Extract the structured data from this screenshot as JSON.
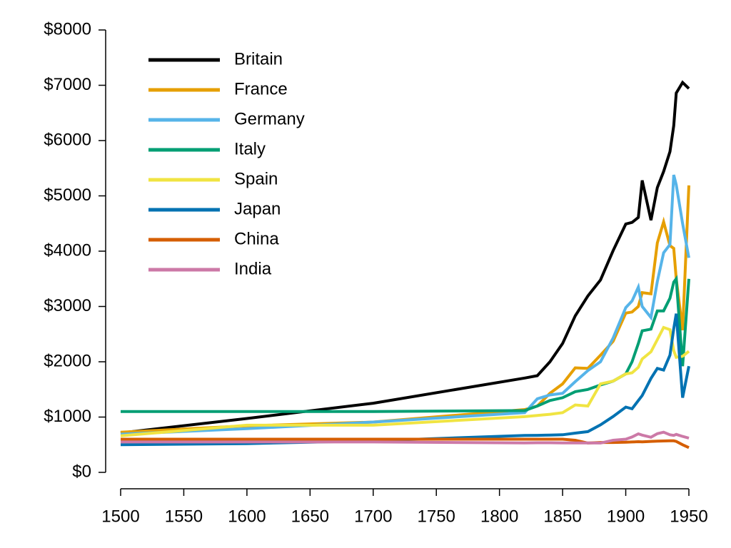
{
  "chart_data": {
    "type": "line",
    "x": [
      1500,
      1600,
      1700,
      1820,
      1830,
      1840,
      1850,
      1860,
      1870,
      1880,
      1890,
      1900,
      1905,
      1910,
      1913,
      1920,
      1925,
      1930,
      1935,
      1938,
      1940,
      1945,
      1950
    ],
    "series": [
      {
        "name": "Britain",
        "color": "#000000",
        "values": [
          714,
          974,
          1250,
          1706,
          1749,
          2000,
          2330,
          2830,
          3190,
          3480,
          4010,
          4490,
          4520,
          4610,
          5280,
          4560,
          5150,
          5440,
          5800,
          6270,
          6860,
          7050,
          6940
        ]
      },
      {
        "name": "France",
        "color": "#e69f00",
        "values": [
          727,
          841,
          910,
          1135,
          1200,
          1430,
          1600,
          1890,
          1880,
          2120,
          2370,
          2880,
          2900,
          3000,
          3250,
          3230,
          4150,
          4530,
          4100,
          4050,
          3500,
          2570,
          5190
        ]
      },
      {
        "name": "Germany",
        "color": "#56b4e9",
        "values": [
          690,
          790,
          910,
          1080,
          1330,
          1400,
          1430,
          1640,
          1840,
          2000,
          2430,
          2980,
          3100,
          3350,
          3000,
          2800,
          3450,
          3970,
          4120,
          5380,
          5200,
          4500,
          3880
        ]
      },
      {
        "name": "Italy",
        "color": "#009e73",
        "values": [
          1100,
          1100,
          1100,
          1117,
          1200,
          1300,
          1350,
          1460,
          1500,
          1580,
          1650,
          1780,
          2000,
          2330,
          2560,
          2590,
          2920,
          2920,
          3150,
          3440,
          3500,
          1920,
          3500
        ]
      },
      {
        "name": "Spain",
        "color": "#f0e442",
        "values": [
          661,
          853,
          853,
          1008,
          1030,
          1050,
          1080,
          1220,
          1200,
          1600,
          1650,
          1780,
          1800,
          1900,
          2050,
          2180,
          2400,
          2620,
          2580,
          2200,
          2080,
          2100,
          2190
        ]
      },
      {
        "name": "Japan",
        "color": "#0072b2",
        "values": [
          500,
          520,
          570,
          669,
          670,
          675,
          680,
          710,
          737,
          860,
          1010,
          1180,
          1150,
          1300,
          1390,
          1700,
          1880,
          1850,
          2120,
          2600,
          2870,
          1350,
          1920
        ]
      },
      {
        "name": "China",
        "color": "#d55e00",
        "values": [
          600,
          600,
          600,
          600,
          600,
          600,
          600,
          580,
          530,
          540,
          540,
          545,
          550,
          555,
          552,
          560,
          565,
          568,
          570,
          570,
          560,
          500,
          448
        ]
      },
      {
        "name": "India",
        "color": "#cc79a7",
        "values": [
          550,
          550,
          550,
          533,
          535,
          535,
          533,
          533,
          533,
          530,
          580,
          600,
          640,
          697,
          673,
          635,
          700,
          726,
          680,
          668,
          686,
          650,
          619
        ]
      }
    ],
    "xlim": [
      1500,
      1950
    ],
    "ylim": [
      0,
      8000
    ],
    "xticks": [
      1500,
      1550,
      1600,
      1650,
      1700,
      1750,
      1800,
      1850,
      1900,
      1950
    ],
    "yticks": [
      {
        "value": 0,
        "label": "$0"
      },
      {
        "value": 1000,
        "label": "$1000"
      },
      {
        "value": 2000,
        "label": "$2000"
      },
      {
        "value": 3000,
        "label": "$3000"
      },
      {
        "value": 4000,
        "label": "$4000"
      },
      {
        "value": 5000,
        "label": "$5000"
      },
      {
        "value": 6000,
        "label": "$6000"
      },
      {
        "value": 7000,
        "label": "$7000"
      },
      {
        "value": 8000,
        "label": "$8000"
      }
    ],
    "legend": "upper-left"
  }
}
